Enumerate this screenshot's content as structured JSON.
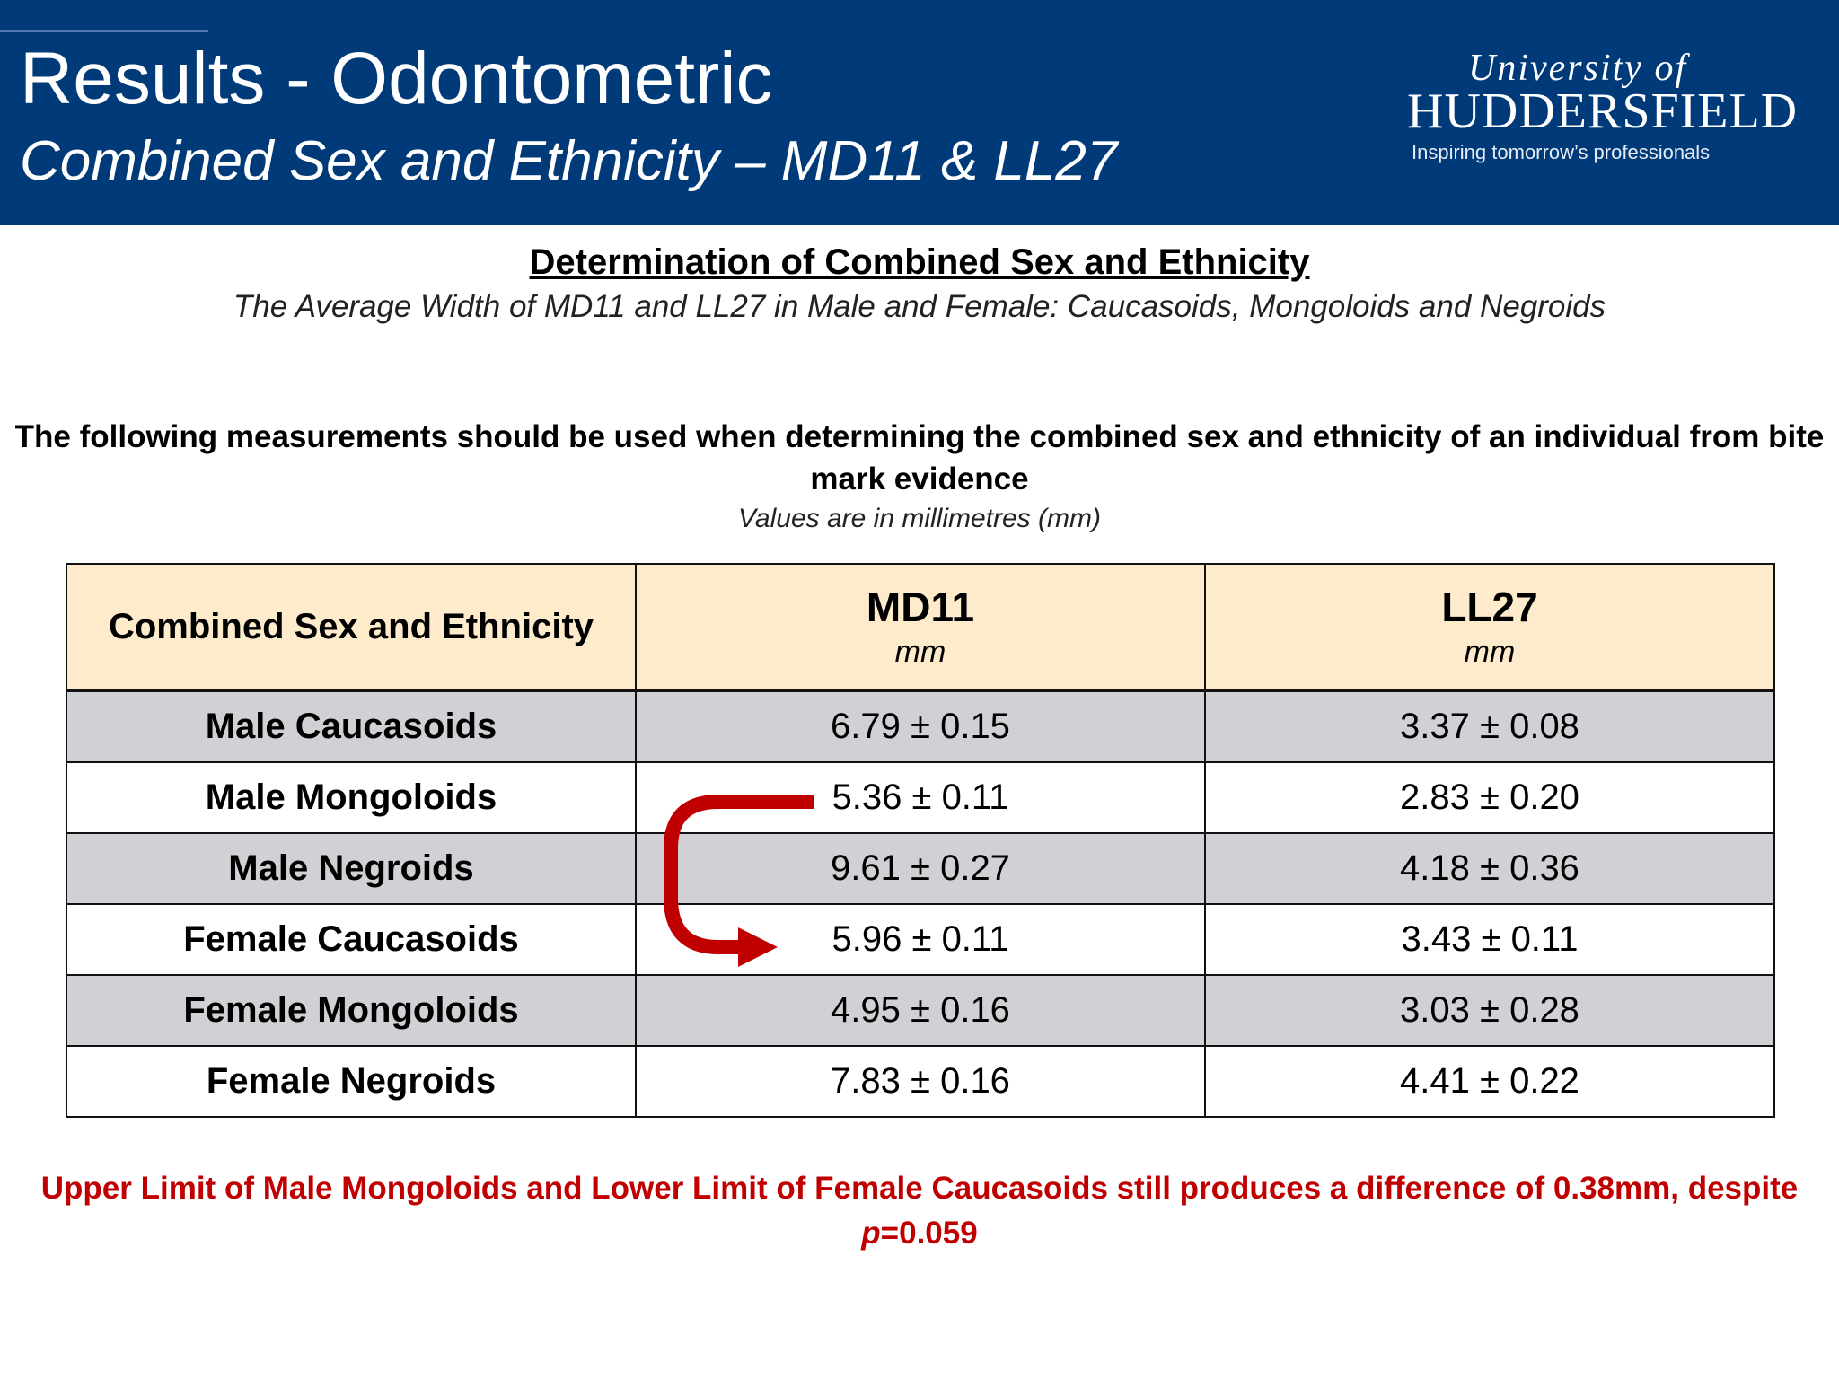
{
  "header": {
    "title": "Results - Odontometric",
    "subtitle": "Combined Sex and Ethnicity – MD11 & LL27",
    "logo": {
      "line1": "University of",
      "line2": "HUDDERSFIELD",
      "tagline": "Inspiring tomorrow’s professionals"
    }
  },
  "section": {
    "title": "Determination of Combined Sex and Ethnicity",
    "subtitle": "The Average Width of MD11 and LL27 in Male and Female: Caucasoids, Mongoloids and Negroids",
    "instruction_line1": "The following measurements should be used when determining the combined sex and ethnicity of an individual from bite",
    "instruction_line2": "mark evidence",
    "units_note": "Values are in millimetres (mm)"
  },
  "table": {
    "header_group": "Combined Sex and Ethnicity",
    "columns": [
      {
        "name": "MD11",
        "unit": "mm"
      },
      {
        "name": "LL27",
        "unit": "mm"
      }
    ],
    "rows": [
      {
        "group": "Male Caucasoids",
        "md11": "6.79 ± 0.15",
        "ll27": "3.37 ± 0.08"
      },
      {
        "group": "Male Mongoloids",
        "md11": "5.36 ± 0.11",
        "ll27": "2.83 ± 0.20"
      },
      {
        "group": "Male Negroids",
        "md11": "9.61 ± 0.27",
        "ll27": "4.18 ± 0.36"
      },
      {
        "group": "Female Caucasoids",
        "md11": "5.96 ± 0.11",
        "ll27": "3.43 ± 0.11"
      },
      {
        "group": "Female Mongoloids",
        "md11": "4.95 ± 0.16",
        "ll27": "3.03 ± 0.28"
      },
      {
        "group": "Female Negroids",
        "md11": "7.83 ± 0.16",
        "ll27": "4.41 ± 0.22"
      }
    ]
  },
  "note": {
    "line1": "Upper Limit of Male Mongoloids and Lower Limit of Female Caucasoids still produces a difference of 0.38mm, despite",
    "p_symbol": "p",
    "p_value": "=0.059"
  },
  "colors": {
    "header_bg": "#003a78",
    "table_header_bg": "#fdebcb",
    "shaded_row_bg": "#d1d1d5",
    "accent_red": "#c00000"
  }
}
